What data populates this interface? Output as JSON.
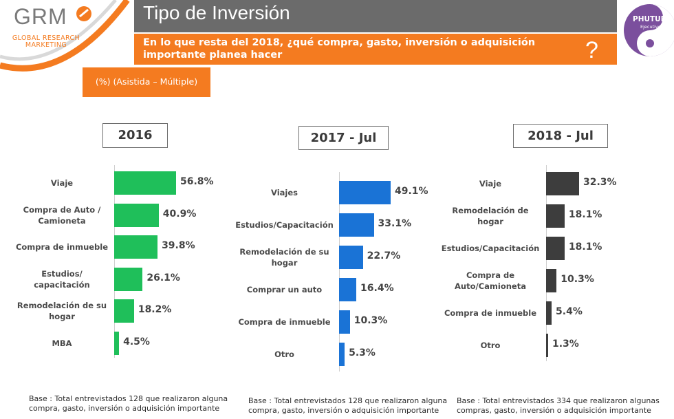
{
  "header": {
    "title": "Tipo de Inversión",
    "question": "En lo que resta del 2018, ¿qué compra, gasto, inversión o adquisición importante planea hacer",
    "question_mark": "?",
    "subtitle": "(%) (Asistida – Múltiple)"
  },
  "logos": {
    "grm_letters": "GRM",
    "grm_line1": "GLOBAL RESEARCH",
    "grm_line2": "MARKETING",
    "phutura_name": "PHUTURA",
    "phutura_sub": "Ejecutivo"
  },
  "colors": {
    "accent_orange": "#f47b20",
    "header_gray": "#6b6b6b",
    "green": "#1fbf5a",
    "blue": "#1a73d6",
    "dark": "#3d3d3d",
    "phutura_purple": "#7b4f9d"
  },
  "chart_data": [
    {
      "type": "bar",
      "orientation": "horizontal",
      "title": "2016",
      "categories": [
        "Viaje",
        "Compra de Auto / Camioneta",
        "Compra de inmueble",
        "Estudios/ capacitación",
        "Remodelación de su hogar",
        "MBA"
      ],
      "values": [
        56.8,
        40.9,
        39.8,
        26.1,
        18.2,
        4.5
      ],
      "value_labels": [
        "56.8%",
        "40.9%",
        "39.8%",
        "26.1%",
        "18.2%",
        "4.5%"
      ],
      "color": "#1fbf5a",
      "base_note": "Base : Total entrevistados 128 que realizaron alguna compra, gasto, inversión o adquisición importante"
    },
    {
      "type": "bar",
      "orientation": "horizontal",
      "title": "2017 - Jul",
      "categories": [
        "Viajes",
        "Estudios/Capacitación",
        "Remodelación de su hogar",
        "Comprar un auto",
        "Compra de inmueble",
        "Otro"
      ],
      "values": [
        49.1,
        33.1,
        22.7,
        16.4,
        10.3,
        5.3
      ],
      "value_labels": [
        "49.1%",
        "33.1%",
        "22.7%",
        "16.4%",
        "10.3%",
        "5.3%"
      ],
      "color": "#1a73d6",
      "base_note": "Base : Total entrevistados 128 que realizaron alguna compra, gasto, inversión o adquisición importante"
    },
    {
      "type": "bar",
      "orientation": "horizontal",
      "title": "2018 - Jul",
      "categories": [
        "Viaje",
        "Remodelación de hogar",
        "Estudios/Capacitación",
        "Compra de Auto/Camioneta",
        "Compra de inmueble",
        "Otro"
      ],
      "values": [
        32.3,
        18.1,
        18.1,
        10.3,
        5.4,
        1.3
      ],
      "value_labels": [
        "32.3%",
        "18.1%",
        "18.1%",
        "10.3%",
        "5.4%",
        "1.3%"
      ],
      "color": "#3d3d3d",
      "base_note": "Base : Total entrevistados 334  que realizaron algunas compras, gasto, inversión o adquisición importante"
    }
  ]
}
